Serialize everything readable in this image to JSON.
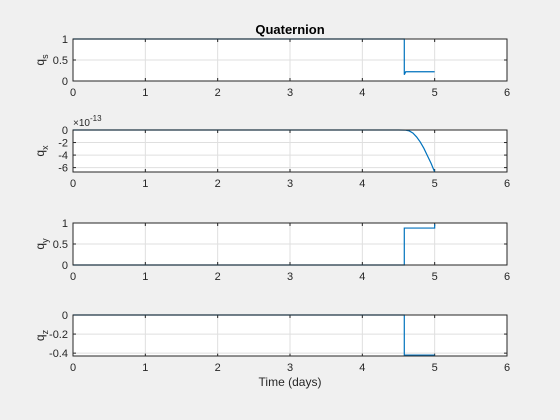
{
  "chart_data": [
    {
      "type": "line",
      "title": "Quaternion",
      "ylabel": "q",
      "ylabel_sub": "s",
      "xlabel": "",
      "xlim": [
        0,
        6
      ],
      "ylim": [
        0,
        1
      ],
      "xticks": [
        "0",
        "1",
        "2",
        "3",
        "4",
        "5",
        "6"
      ],
      "yticks": [
        {
          "v": 0,
          "t": "0"
        },
        {
          "v": 0.5,
          "t": "0.5"
        },
        {
          "v": 1,
          "t": "1"
        }
      ],
      "grid": true,
      "series": [
        {
          "x": [
            0,
            4.58,
            4.58,
            4.6,
            5.0
          ],
          "y": [
            1,
            1,
            0.15,
            0.22,
            0.22
          ],
          "color": "#0072BD"
        }
      ]
    },
    {
      "type": "line",
      "title": "",
      "ylabel": "q",
      "ylabel_sub": "x",
      "xlabel": "",
      "xlim": [
        0,
        6
      ],
      "ylim": [
        -6.7,
        0
      ],
      "exponent_label": "×10",
      "exponent_power": "-13",
      "xticks": [
        "0",
        "1",
        "2",
        "3",
        "4",
        "5",
        "6"
      ],
      "yticks": [
        {
          "v": 0,
          "t": "0"
        },
        {
          "v": -2,
          "t": "-2"
        },
        {
          "v": -4,
          "t": "-4"
        },
        {
          "v": -6,
          "t": "-6"
        }
      ],
      "grid": true,
      "series": [
        {
          "x": [
            0,
            4.5,
            4.6,
            4.65,
            4.7,
            4.75,
            4.8,
            4.85,
            4.9,
            4.95,
            5.0
          ],
          "y": [
            0,
            0,
            -0.02,
            -0.15,
            -0.5,
            -1.1,
            -1.9,
            -2.9,
            -4.1,
            -5.3,
            -6.7
          ],
          "color": "#0072BD"
        }
      ]
    },
    {
      "type": "line",
      "title": "",
      "ylabel": "q",
      "ylabel_sub": "y",
      "xlabel": "",
      "xlim": [
        0,
        6
      ],
      "ylim": [
        0,
        1
      ],
      "xticks": [
        "0",
        "1",
        "2",
        "3",
        "4",
        "5",
        "6"
      ],
      "yticks": [
        {
          "v": 0,
          "t": "0"
        },
        {
          "v": 0.5,
          "t": "0.5"
        },
        {
          "v": 1,
          "t": "1"
        }
      ],
      "grid": true,
      "series": [
        {
          "x": [
            0,
            4.58,
            4.58,
            5.0,
            5.0
          ],
          "y": [
            0,
            0,
            0.88,
            0.88,
            0.97
          ],
          "color": "#0072BD"
        }
      ]
    },
    {
      "type": "line",
      "title": "",
      "ylabel": "q",
      "ylabel_sub": "z",
      "xlabel": "Time (days)",
      "xlim": [
        0,
        6
      ],
      "ylim": [
        -0.43,
        0
      ],
      "xticks": [
        "0",
        "1",
        "2",
        "3",
        "4",
        "5",
        "6"
      ],
      "yticks": [
        {
          "v": 0,
          "t": "0"
        },
        {
          "v": -0.2,
          "t": "-0.2"
        },
        {
          "v": -0.4,
          "t": "-0.4"
        }
      ],
      "grid": true,
      "series": [
        {
          "x": [
            0,
            4.58,
            4.58,
            5.0
          ],
          "y": [
            0,
            0,
            -0.42,
            -0.42
          ],
          "color": "#0072BD"
        }
      ]
    }
  ]
}
